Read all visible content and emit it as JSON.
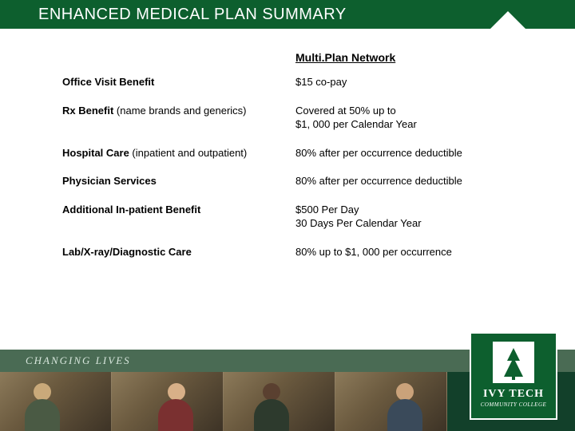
{
  "colors": {
    "header_bg": "#0d5f2e",
    "footer_top": "#4a6b54",
    "footer_bottom": "#12402a",
    "logo_bg": "#0d5f2e",
    "text": "#000000"
  },
  "header": {
    "title": "ENHANCED MEDICAL PLAN SUMMARY"
  },
  "table": {
    "column_header": "Multi.Plan Network",
    "rows": [
      {
        "label_bold": "Office Visit Benefit",
        "label_rest": "",
        "value": "$15 co-pay"
      },
      {
        "label_bold": "Rx Benefit",
        "label_rest": " (name brands and generics)",
        "value": "Covered at 50% up to\n$1, 000 per Calendar Year"
      },
      {
        "label_bold": "Hospital Care",
        "label_rest": " (inpatient and outpatient)",
        "value": "80% after per occurrence deductible"
      },
      {
        "label_bold": "Physician Services",
        "label_rest": "",
        "value": "80% after per occurrence deductible"
      },
      {
        "label_bold": "Additional In-patient Benefit",
        "label_rest": "",
        "value": "$500 Per Day\n30 Days Per Calendar Year"
      },
      {
        "label_bold": "Lab/X-ray/Diagnostic Care",
        "label_rest": "",
        "value": "80% up to $1, 000 per occurrence"
      }
    ]
  },
  "footer": {
    "tagline": "CHANGING LIVES",
    "logo_main": "IVY TECH",
    "logo_sub": "COMMUNITY COLLEGE"
  }
}
